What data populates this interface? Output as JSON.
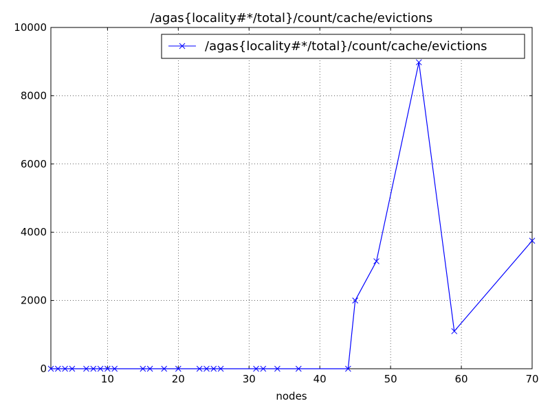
{
  "chart_data": {
    "type": "line",
    "title": "/agas{locality#*/total}/count/cache/evictions",
    "xlabel": "nodes",
    "ylabel": "",
    "xlim": [
      2,
      70
    ],
    "ylim": [
      0,
      10000
    ],
    "xticks": [
      10,
      20,
      30,
      40,
      50,
      60,
      70
    ],
    "yticks": [
      0,
      2000,
      4000,
      6000,
      8000,
      10000
    ],
    "grid": true,
    "legend_position": "top-right",
    "series": [
      {
        "name": "/agas{locality#*/total}/count/cache/evictions",
        "color": "#0000ff",
        "marker": "x",
        "x": [
          2,
          3,
          4,
          5,
          7,
          8,
          9,
          10,
          11,
          15,
          16,
          18,
          20,
          23,
          24,
          25,
          26,
          31,
          32,
          34,
          37,
          44,
          45,
          48,
          54,
          59,
          70
        ],
        "y": [
          0,
          0,
          0,
          0,
          0,
          0,
          0,
          0,
          0,
          0,
          0,
          0,
          0,
          0,
          0,
          0,
          0,
          0,
          0,
          0,
          0,
          0,
          2000,
          3150,
          8980,
          1100,
          3750
        ]
      }
    ]
  }
}
